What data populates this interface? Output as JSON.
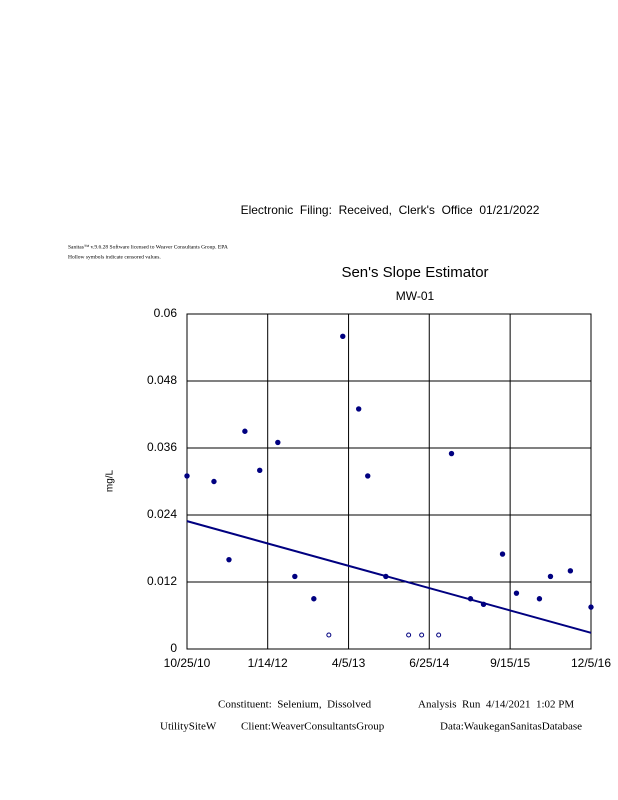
{
  "header": {
    "filing": "Electronic  Filing:  Received,  Clerk's  Office  01/21/2022",
    "software": "Sanitas™ v.9.6.28 Software licensed to Weaver Consultants Group. EPA",
    "note": "Hollow symbols indicate censored values."
  },
  "footer": {
    "constituent": "Constituent:  Selenium,  Dissolved",
    "analysis": "Analysis  Run  4/14/2021  1:02 PM",
    "site": "UtilitySiteW",
    "client": "Client:WeaverConsultantsGroup",
    "database": "Data:WaukeganSanitasDatabase"
  },
  "chart_data": {
    "type": "scatter",
    "title": "Sen's Slope Estimator",
    "subtitle": "MW-01",
    "y_label": "mg/L",
    "xlim": [
      "2010-10-25",
      "2016-12-05"
    ],
    "xticks": [
      {
        "value": "2010-10-25",
        "label": "10/25/10"
      },
      {
        "value": "2012-01-14",
        "label": "1/14/12"
      },
      {
        "value": "2013-04-05",
        "label": "4/5/13"
      },
      {
        "value": "2014-06-25",
        "label": "6/25/14"
      },
      {
        "value": "2015-09-15",
        "label": "9/15/15"
      },
      {
        "value": "2016-12-05",
        "label": "12/5/16"
      }
    ],
    "ylim": [
      0,
      0.06
    ],
    "yticks": [
      0,
      0.012,
      0.024,
      0.036,
      0.048,
      0.06
    ],
    "grid": true,
    "series": [
      {
        "marker": "filled",
        "color": "#000080",
        "x": [
          "2010-10-25",
          "2011-03-23",
          "2011-06-14",
          "2011-09-10",
          "2011-12-01",
          "2012-03-10",
          "2012-06-12",
          "2012-09-25",
          "2013-03-04",
          "2013-05-31",
          "2013-07-20",
          "2013-10-28",
          "2014-10-26",
          "2015-02-08",
          "2015-04-21",
          "2015-08-04",
          "2015-10-20",
          "2016-02-24",
          "2016-04-25",
          "2016-08-13",
          "2016-12-05"
        ],
        "values": [
          0.031,
          0.03,
          0.016,
          0.039,
          0.032,
          0.037,
          0.013,
          0.009,
          0.056,
          0.043,
          0.031,
          0.013,
          0.035,
          0.009,
          0.008,
          0.017,
          0.01,
          0.009,
          0.013,
          0.014,
          0.0075
        ]
      },
      {
        "marker": "hollow",
        "color": "#000080",
        "x": [
          "2012-12-17",
          "2014-03-03",
          "2014-05-14",
          "2014-08-16"
        ],
        "values": [
          0.0025,
          0.0025,
          0.0025,
          0.0025
        ]
      }
    ],
    "trend_line": {
      "color": "#000080",
      "x": [
        "2010-10-25",
        "2016-12-05"
      ],
      "values": [
        0.0229,
        0.0029
      ]
    }
  }
}
